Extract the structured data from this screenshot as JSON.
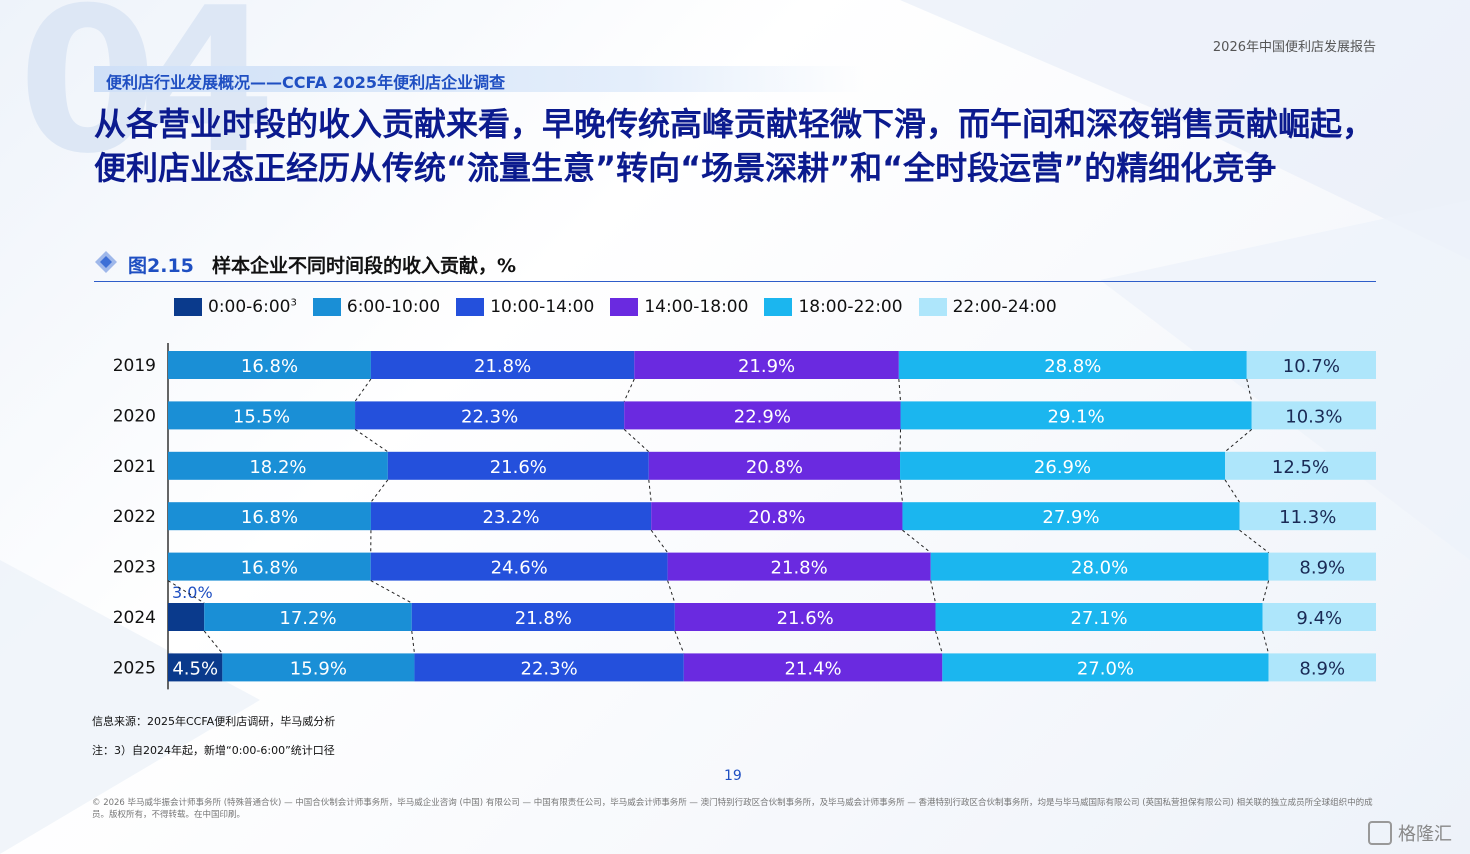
{
  "colors": {
    "accent": "#1f4fc2",
    "headline": "#0b1a8e",
    "series": [
      "#0a3a8c",
      "#1a8fd6",
      "#2450dc",
      "#6a2ae0",
      "#1bb6ef",
      "#aee6fb"
    ]
  },
  "page": {
    "section_number": "04",
    "report_name": "2026年中国便利店发展报告",
    "section_label": "便利店行业发展概况——CCFA 2025年便利店企业调查",
    "headline": "从各营业时段的收入贡献来看，早晚传统高峰贡献轻微下滑，而午间和深夜销售贡献崛起，便利店业态正经历从传统“流量生意”转向“场景深耕”和“全时段运营”的精细化竞争",
    "figure_number": "图2.15",
    "figure_title": "样本企业不同时间段的收入贡献，%",
    "source": "信息来源：2025年CCFA便利店调研，毕马威分析",
    "note": "注：3）自2024年起，新增“0:00-6:00”统计口径",
    "page_number": "19",
    "disclaimer": "© 2026 毕马威华振会计师事务所 (特殊普通合伙) — 中国合伙制会计师事务所，毕马威企业咨询 (中国) 有限公司 — 中国有限责任公司，毕马威会计师事务所 — 澳门特别行政区合伙制事务所，及毕马威会计师事务所 — 香港特别行政区合伙制事务所，均是与毕马威国际有限公司 (英国私营担保有限公司) 相关联的独立成员所全球组织中的成员。版权所有，不得转载。在中国印刷。",
    "watermark": "格隆汇",
    "watermark_icon": "logo-g-icon",
    "diamond_icon": "diamond-icon"
  },
  "legend": [
    {
      "label": "0:00-6:00",
      "sup": "3"
    },
    {
      "label": "6:00-10:00",
      "sup": ""
    },
    {
      "label": "10:00-14:00",
      "sup": ""
    },
    {
      "label": "14:00-18:00",
      "sup": ""
    },
    {
      "label": "18:00-22:00",
      "sup": ""
    },
    {
      "label": "22:00-24:00",
      "sup": ""
    }
  ],
  "chart_data": {
    "type": "bar",
    "orientation": "horizontal",
    "stacked": true,
    "percent_stacked": true,
    "legend_position": "top",
    "grid": false,
    "categories": [
      "2019",
      "2020",
      "2021",
      "2022",
      "2023",
      "2024",
      "2025"
    ],
    "series": [
      {
        "name": "0:00-6:00",
        "values": [
          0,
          0,
          0,
          0,
          0,
          3.0,
          4.5
        ],
        "labels": [
          "",
          "",
          "",
          "",
          "",
          "3.0%",
          "4.5%"
        ]
      },
      {
        "name": "6:00-10:00",
        "values": [
          16.8,
          15.5,
          18.2,
          16.8,
          16.8,
          17.2,
          15.9
        ],
        "labels": [
          "16.8%",
          "15.5%",
          "18.2%",
          "16.8%",
          "16.8%",
          "17.2%",
          "15.9%"
        ]
      },
      {
        "name": "10:00-14:00",
        "values": [
          21.8,
          22.3,
          21.6,
          23.2,
          24.6,
          21.8,
          22.3
        ],
        "labels": [
          "21.8%",
          "22.3%",
          "21.6%",
          "23.2%",
          "24.6%",
          "21.8%",
          "22.3%"
        ]
      },
      {
        "name": "14:00-18:00",
        "values": [
          21.9,
          22.9,
          20.8,
          20.8,
          21.8,
          21.6,
          21.4
        ],
        "labels": [
          "21.9%",
          "22.9%",
          "20.8%",
          "20.8%",
          "21.8%",
          "21.6%",
          "21.4%"
        ]
      },
      {
        "name": "18:00-22:00",
        "values": [
          28.8,
          29.1,
          26.9,
          27.9,
          28.0,
          27.1,
          27.0
        ],
        "labels": [
          "28.8%",
          "29.1%",
          "26.9%",
          "27.9%",
          "28.0%",
          "27.1%",
          "27.0%"
        ]
      },
      {
        "name": "22:00-24:00",
        "values": [
          10.7,
          10.3,
          12.5,
          11.3,
          8.9,
          9.4,
          8.9
        ],
        "labels": [
          "10.7%",
          "10.3%",
          "12.5%",
          "11.3%",
          "8.9%",
          "9.4%",
          "8.9%"
        ]
      }
    ],
    "xlim": [
      0,
      100
    ]
  }
}
